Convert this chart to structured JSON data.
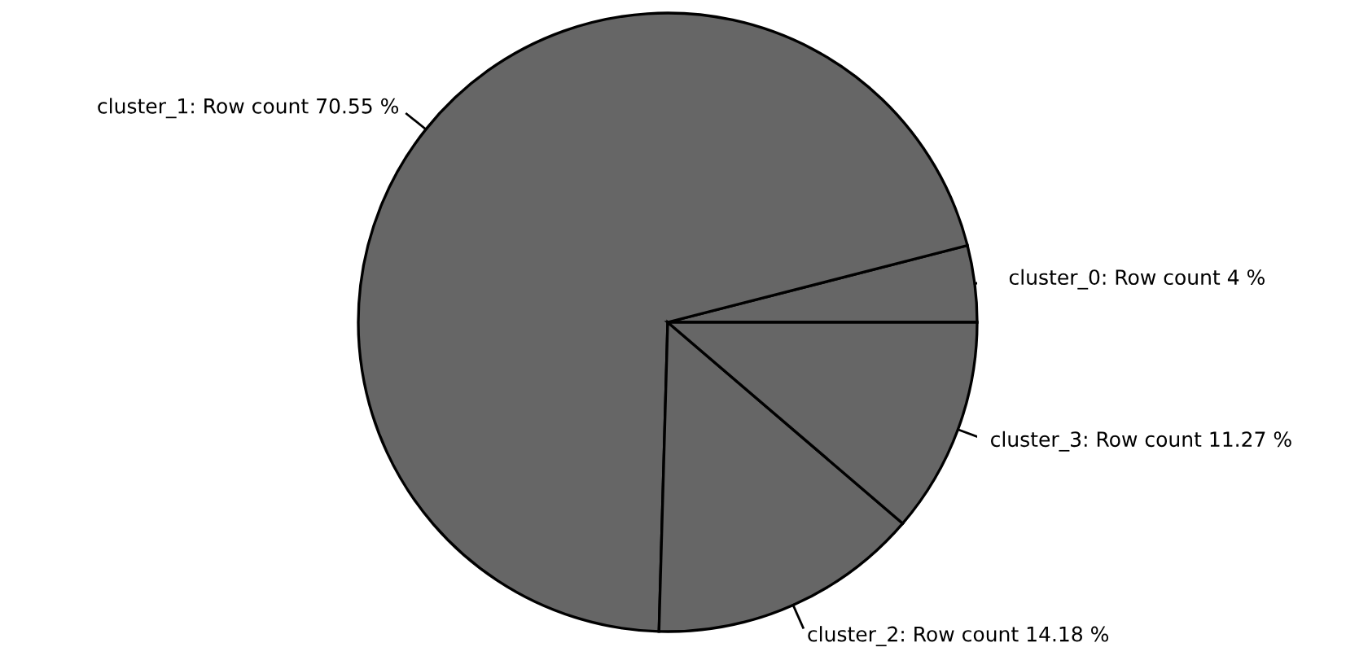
{
  "chart_data": {
    "type": "pie",
    "categories": [
      "cluster_0: Row count 4 %",
      "cluster_1: Row count 70.55 %",
      "cluster_2: Row count 14.18 %",
      "cluster_3: Row count 11.27 %"
    ],
    "values": [
      4,
      70.55,
      14.18,
      11.27
    ],
    "colors": [
      "#666666",
      "#666666",
      "#666666",
      "#666666"
    ],
    "legend": false
  }
}
